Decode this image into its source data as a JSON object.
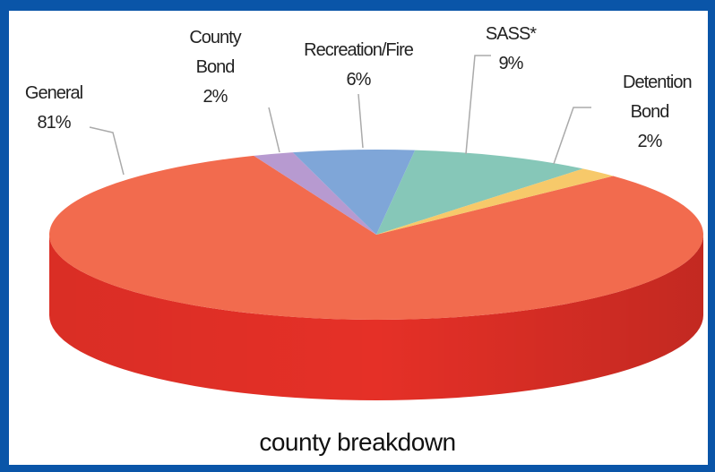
{
  "chart_data": {
    "type": "pie",
    "title": "county breakdown",
    "categories": [
      "General",
      "County Bond",
      "Recreation/Fire",
      "SASS*",
      "Detention Bond"
    ],
    "values": [
      81,
      2,
      6,
      9,
      2
    ],
    "value_labels": [
      "81%",
      "2%",
      "6%",
      "9%",
      "2%"
    ],
    "colors": [
      "#f26b4e",
      "#b79ad0",
      "#7fa6d8",
      "#86c7b8",
      "#f7c96a"
    ],
    "three_d": true
  }
}
